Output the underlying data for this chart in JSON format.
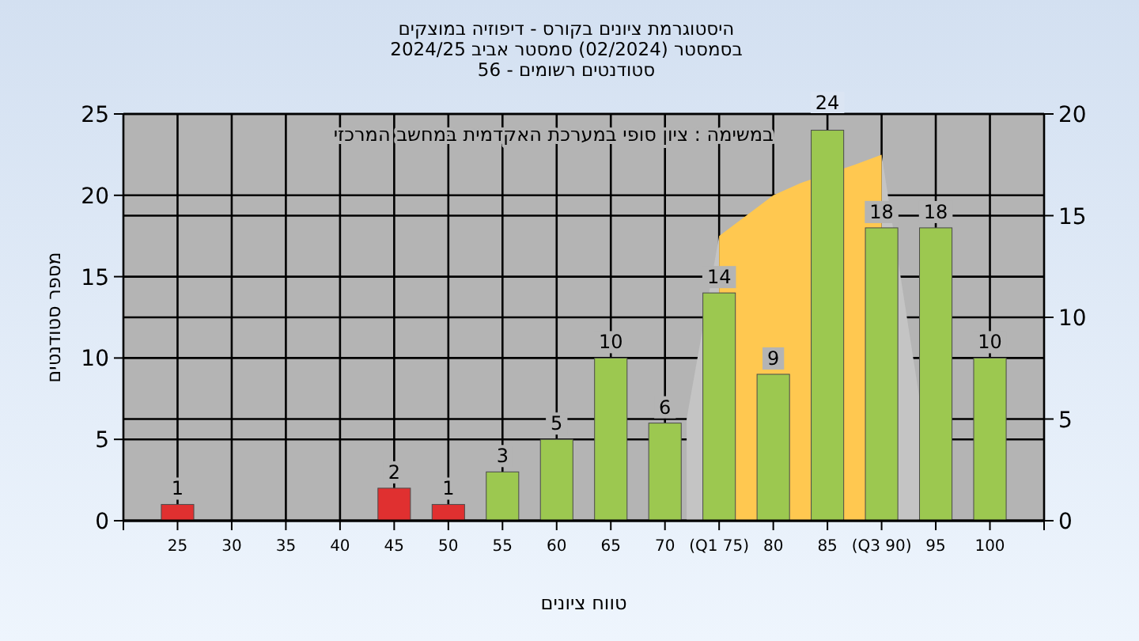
{
  "chart_data": {
    "type": "bar",
    "title": "היסטוגרמת ציונים בקורס - דיפוזיה במוצקים",
    "subtitle": "בסמסטר  (02/2024)  סמסטר אביב 2024/25\nסטודנטים רשומים - 56",
    "xlabel": "טווח ציונים",
    "ylabel": "מספר סטודנטים",
    "annotations": [
      "במשימה : ציון סופי במערכת האקדמית במחשב המרכזי"
    ],
    "x": [
      25,
      45,
      50,
      55,
      60,
      65,
      70,
      75,
      80,
      85,
      90,
      95,
      100
    ],
    "series": [
      {
        "type": "area",
        "axis": "y2",
        "color": "#c4c4c4",
        "x": [
          72,
          75
        ],
        "values": [
          5,
          14
        ]
      },
      {
        "type": "area",
        "axis": "y2",
        "color": "#c4c4c4",
        "x": [
          90,
          93.5
        ],
        "values": [
          18,
          6
        ]
      },
      {
        "type": "area",
        "axis": "y2",
        "color": "#ffc850",
        "x": [
          75,
          80,
          82.5,
          87.5,
          90
        ],
        "values": [
          14,
          16,
          16.6,
          17.5,
          18
        ]
      },
      {
        "values": [
          1,
          2,
          1,
          3,
          5,
          10,
          6,
          14,
          9,
          24,
          18,
          18,
          10
        ],
        "value_labels": [
          "1",
          "2",
          "1",
          "3",
          "5",
          "10",
          "6",
          "14",
          "9",
          "24",
          "18",
          "18",
          "10"
        ],
        "colors": [
          "#e03030",
          "#e03030",
          "#e03030",
          "#9cc850",
          "#9cc850",
          "#9cc850",
          "#9cc850",
          "#9cc850",
          "#9cc850",
          "#9cc850",
          "#9cc850",
          "#9cc850",
          "#9cc850"
        ]
      }
    ],
    "xlim": [
      20,
      105
    ],
    "xticks": [
      {
        "value": 20,
        "label": null
      },
      25,
      30,
      35,
      40,
      45,
      50,
      55,
      60,
      65,
      70,
      {
        "value": 75,
        "label": "(Q1 75)"
      },
      80,
      85,
      {
        "value": 90,
        "label": "(Q3 90)"
      },
      95,
      100,
      {
        "value": 105,
        "label": null
      }
    ],
    "ylim": [
      0,
      25
    ],
    "yticks": [
      0,
      5,
      10,
      15,
      20,
      25
    ],
    "y2lim": [
      0,
      20
    ],
    "y2ticks": [
      0,
      5,
      10,
      15,
      20
    ],
    "grid": true
  }
}
